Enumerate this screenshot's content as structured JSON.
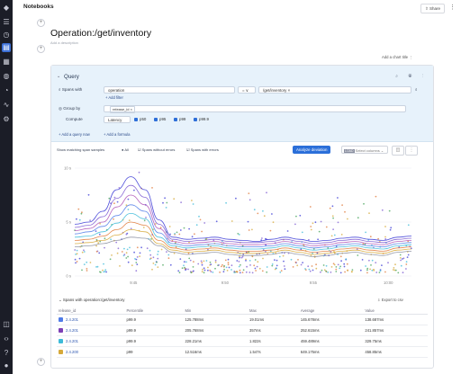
{
  "app": {
    "title": "Notebooks",
    "share_label": "Share"
  },
  "page": {
    "title": "Operation:/get/inventory",
    "subtitle": "Add a description",
    "add_chart_title": "Add a chart title"
  },
  "query": {
    "title": "Query",
    "spans_with_label": "Spans with",
    "operation_value": "operation",
    "op_equals": "= ∨",
    "path_value": "/get/inventory",
    "add_filter": "+ Add filter",
    "group_by_label": "Group by",
    "group_by_value": "release_id",
    "compute_label": "Compute",
    "compute_metric": "Latency",
    "percentiles": [
      "p50",
      "p95",
      "p99",
      "p99.9"
    ],
    "add_query_now": "+ Add a query now",
    "add_formula": "+ Add a formula"
  },
  "controls": {
    "show_matching": "Show matching span samples",
    "opt_all": "All",
    "opt_without_errors": "Spans without errors",
    "opt_with_errors": "Spans with errors",
    "analyze_button": "Analyze deviation",
    "load_tag": "LOAD",
    "load_placeholder": "Select columns"
  },
  "chart_data": {
    "type": "line",
    "y_ticks": [
      "10 s",
      "5 s",
      "0 s"
    ],
    "x_ticks": [
      "9:45",
      "9:50",
      "9:55",
      "10:00"
    ],
    "ylim": [
      0,
      10
    ],
    "grid": true,
    "series": [
      {
        "color": "#3a3ad6",
        "values": [
          4.8,
          5.0,
          6.0,
          8.0,
          9.2,
          8.0,
          5.2,
          3.6,
          3.4,
          3.5,
          3.6,
          3.4,
          3.3,
          3.2,
          3.4,
          3.6,
          3.4,
          3.2,
          3.3,
          3.5,
          3.6,
          3.4,
          3.3,
          3.6,
          3.7
        ]
      },
      {
        "color": "#7d5bd1",
        "values": [
          4.5,
          4.7,
          5.5,
          7.2,
          8.4,
          7.3,
          4.8,
          3.4,
          3.2,
          3.3,
          3.4,
          3.2,
          3.1,
          3.1,
          3.2,
          3.4,
          3.2,
          3.0,
          3.1,
          3.3,
          3.4,
          3.2,
          3.1,
          3.4,
          3.5
        ]
      },
      {
        "color": "#b056b8",
        "values": [
          4.2,
          4.4,
          5.0,
          6.4,
          7.5,
          6.6,
          4.4,
          3.2,
          3.0,
          3.1,
          3.2,
          3.0,
          2.9,
          2.9,
          3.0,
          3.2,
          3.0,
          2.8,
          2.9,
          3.1,
          3.2,
          3.0,
          2.9,
          3.2,
          3.3
        ]
      },
      {
        "color": "#4f7be8",
        "values": [
          3.9,
          4.1,
          4.6,
          5.6,
          6.6,
          6.0,
          4.0,
          3.0,
          2.8,
          2.9,
          3.0,
          2.8,
          2.7,
          2.7,
          2.8,
          3.0,
          2.8,
          2.6,
          2.7,
          2.9,
          3.0,
          2.8,
          2.7,
          3.0,
          3.1
        ]
      },
      {
        "color": "#3dbbd9",
        "values": [
          3.6,
          3.7,
          4.1,
          4.9,
          5.8,
          5.3,
          3.6,
          2.8,
          2.6,
          2.7,
          2.8,
          2.6,
          2.5,
          2.5,
          2.6,
          2.8,
          2.6,
          2.4,
          2.5,
          2.7,
          2.8,
          2.6,
          2.5,
          2.8,
          2.9
        ]
      },
      {
        "color": "#e07a3a",
        "values": [
          3.3,
          3.4,
          3.7,
          4.3,
          5.0,
          4.7,
          3.3,
          2.6,
          2.4,
          2.5,
          2.6,
          2.4,
          2.3,
          2.3,
          2.4,
          2.6,
          2.4,
          2.2,
          2.3,
          2.5,
          2.6,
          2.4,
          2.3,
          2.6,
          2.7
        ]
      },
      {
        "color": "#d6a93a",
        "values": [
          3.0,
          3.1,
          3.3,
          3.8,
          4.3,
          4.1,
          3.0,
          2.4,
          2.2,
          2.3,
          2.4,
          2.2,
          2.1,
          2.1,
          2.2,
          2.4,
          2.2,
          2.0,
          2.1,
          2.3,
          2.4,
          2.2,
          2.1,
          2.4,
          2.5
        ]
      },
      {
        "color": "#8a8ea0",
        "values": [
          2.7,
          2.8,
          3.0,
          3.3,
          3.6,
          3.5,
          2.8,
          2.2,
          2.0,
          2.1,
          2.2,
          2.0,
          1.9,
          1.9,
          2.0,
          2.2,
          2.0,
          1.8,
          1.9,
          2.1,
          2.2,
          2.0,
          1.9,
          2.2,
          2.3
        ]
      }
    ],
    "scatter_colors": [
      "#3a3ad6",
      "#7d5bd1",
      "#3dbbd9",
      "#e07a3a",
      "#d6a93a",
      "#46a35a"
    ]
  },
  "table": {
    "heading": "Spans with operation:/get/inventory",
    "export_label": "Export to csv",
    "columns": [
      "release_id",
      "Percentile",
      "Min",
      "Max",
      "Average",
      "Value"
    ],
    "rows": [
      {
        "color": "#4f7be8",
        "cells": [
          "2.4.201",
          "p99.9",
          "125.788ms",
          "19.01ms",
          "145.678ms",
          "138.687ms"
        ]
      },
      {
        "color": "#7d3fb5",
        "cells": [
          "2.4.201",
          "p99.9",
          "205.768ms",
          "357ms",
          "252.615ms",
          "241.857ms"
        ]
      },
      {
        "color": "#3dbbd9",
        "cells": [
          "2.4.201",
          "p99.9",
          "228.21ms",
          "1.822s",
          "459.489ms",
          "329.75ms"
        ]
      },
      {
        "color": "#d6a93a",
        "cells": [
          "2.4.200",
          "p99",
          "12.516ms",
          "1.547s",
          "649.175ms",
          "458.85ms"
        ]
      }
    ]
  }
}
